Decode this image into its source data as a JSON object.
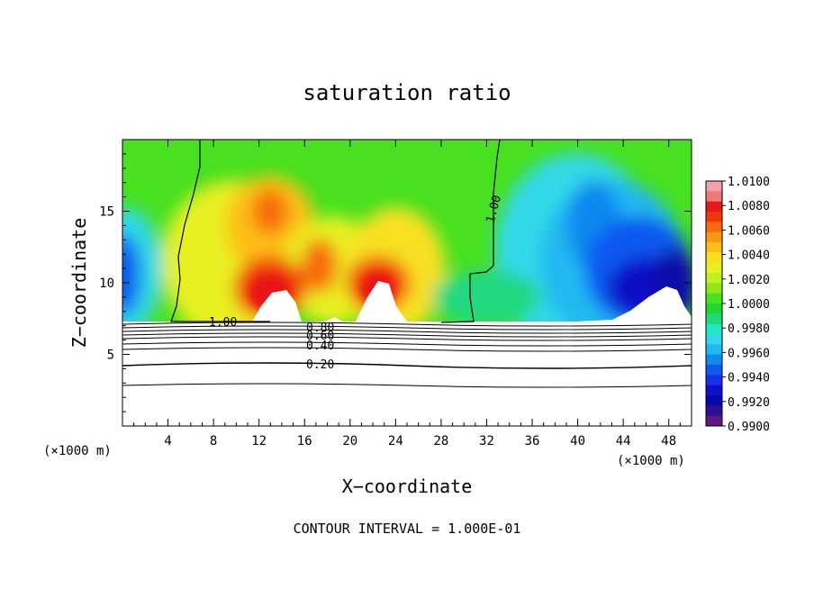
{
  "chart_data": {
    "type": "heatmap",
    "title": "saturation ratio",
    "xlabel": "X−coordinate",
    "ylabel": "Z−coordinate",
    "x_unit_left": "(×1000 m)",
    "x_unit_right": "(×1000 m)",
    "xlim": [
      0,
      50
    ],
    "ylim": [
      0,
      20
    ],
    "x_ticks": [
      4,
      8,
      12,
      16,
      20,
      24,
      28,
      32,
      36,
      40,
      44,
      48
    ],
    "y_ticks": [
      5,
      10,
      15
    ],
    "footer": "CONTOUR INTERVAL = 1.000E-01",
    "colorbar": {
      "min": 0.99,
      "max": 1.01,
      "labels": [
        "1.0100",
        "1.0080",
        "1.0060",
        "1.0040",
        "1.0020",
        "1.0000",
        "0.9980",
        "0.9960",
        "0.9940",
        "0.9920",
        "0.9900"
      ],
      "colors": [
        "#f4a0a8",
        "#f07878",
        "#e81818",
        "#f03810",
        "#f86a10",
        "#f89a10",
        "#fcc018",
        "#f8e020",
        "#e8f020",
        "#c0f020",
        "#90e818",
        "#48e020",
        "#20d830",
        "#20d880",
        "#20e8c0",
        "#30d8e8",
        "#20b8f0",
        "#1088f0",
        "#1058f0",
        "#1830e8",
        "#1010c8",
        "#0808a8",
        "#301090",
        "#601880"
      ]
    },
    "field_description_regions": {
      "clear_below_z": 7.2,
      "moist_band_x": [
        4.5,
        31
      ],
      "dry_region_x": [
        32,
        50
      ]
    },
    "contours": [
      {
        "level": "1.00",
        "path": [
          [
            7,
            7.3
          ],
          [
            5,
            7.3
          ],
          [
            5,
            9
          ],
          [
            4.5,
            11
          ],
          [
            5,
            14
          ],
          [
            6,
            17
          ],
          [
            7,
            19
          ],
          [
            7,
            20
          ]
        ]
      },
      {
        "level": "1.00",
        "path": [
          [
            28,
            7.3
          ],
          [
            31,
            7.3
          ],
          [
            31,
            10
          ],
          [
            33,
            10.2
          ],
          [
            33,
            13
          ],
          [
            33,
            16
          ],
          [
            33.5,
            18
          ],
          [
            33.5,
            20
          ]
        ]
      },
      {
        "level": "0.80",
        "path": null
      },
      {
        "level": "0.60",
        "path": null
      },
      {
        "level": "0.40",
        "path": null
      },
      {
        "level": "0.20",
        "path": null
      }
    ],
    "contour_labels": [
      "1.00",
      "1.00",
      "0.80",
      "0.60",
      "0.40",
      "0.20"
    ]
  }
}
